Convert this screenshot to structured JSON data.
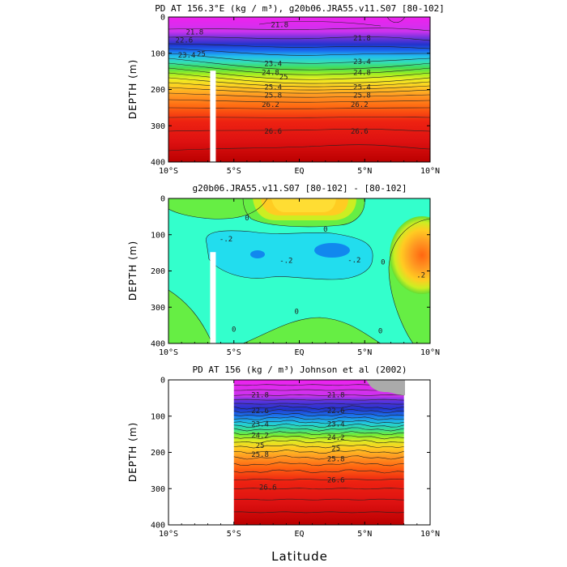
{
  "figure": {
    "xlabel": "Latitude"
  },
  "chart_data": [
    {
      "type": "heatmap",
      "title": "PD AT 156.3°E (kg / m³), g20b06.JRA55.v11.S07 [80-102]",
      "ylabel": "DEPTH (m)",
      "xlim": [
        -10,
        10
      ],
      "ylim": [
        0,
        400
      ],
      "y_inverted": true,
      "x_ticks": [
        "10°S",
        "5°S",
        "EQ",
        "5°N",
        "10°N"
      ],
      "x_tick_values": [
        -10,
        -5,
        0,
        5,
        10
      ],
      "y_ticks": [
        0,
        100,
        200,
        300,
        400
      ],
      "contour_labels": [
        {
          "lat": -8.0,
          "depth": 48,
          "text": "21.8"
        },
        {
          "lat": -1.5,
          "depth": 28,
          "text": "21.8"
        },
        {
          "lat": 4.8,
          "depth": 65,
          "text": "21.8"
        },
        {
          "lat": -8.8,
          "depth": 70,
          "text": "22.6"
        },
        {
          "lat": -8.6,
          "depth": 112,
          "text": "23.4"
        },
        {
          "lat": -7.5,
          "depth": 108,
          "text": "25"
        },
        {
          "lat": -2.0,
          "depth": 135,
          "text": "23.4"
        },
        {
          "lat": -2.2,
          "depth": 160,
          "text": "24.8"
        },
        {
          "lat": -1.2,
          "depth": 172,
          "text": "25"
        },
        {
          "lat": 4.8,
          "depth": 130,
          "text": "23.4"
        },
        {
          "lat": 4.8,
          "depth": 160,
          "text": "24.8"
        },
        {
          "lat": -2.0,
          "depth": 200,
          "text": "25.4"
        },
        {
          "lat": 4.8,
          "depth": 200,
          "text": "25.4"
        },
        {
          "lat": -2.0,
          "depth": 222,
          "text": "25.8"
        },
        {
          "lat": 4.8,
          "depth": 222,
          "text": "25.8"
        },
        {
          "lat": -2.2,
          "depth": 248,
          "text": "26.2"
        },
        {
          "lat": 4.6,
          "depth": 248,
          "text": "26.2"
        },
        {
          "lat": -2.0,
          "depth": 322,
          "text": "26.6"
        },
        {
          "lat": 4.6,
          "depth": 322,
          "text": "26.6"
        }
      ],
      "masked_bar": {
        "lat": -6.6,
        "from_depth": 148,
        "to_depth": 400
      }
    },
    {
      "type": "heatmap",
      "title": "g20b06.JRA55.v11.S07 [80-102] -  [80-102]",
      "ylabel": "DEPTH (m)",
      "xlim": [
        -10,
        10
      ],
      "ylim": [
        0,
        400
      ],
      "y_inverted": true,
      "x_ticks": [
        "10°S",
        "5°S",
        "EQ",
        "5°N",
        "10°N"
      ],
      "x_tick_values": [
        -10,
        -5,
        0,
        5,
        10
      ],
      "y_ticks": [
        0,
        100,
        200,
        300,
        400
      ],
      "contour_labels": [
        {
          "lat": -4.0,
          "depth": 60,
          "text": "0"
        },
        {
          "lat": 2.0,
          "depth": 92,
          "text": "0"
        },
        {
          "lat": -5.6,
          "depth": 118,
          "text": "-.2"
        },
        {
          "lat": -1.0,
          "depth": 178,
          "text": "-.2"
        },
        {
          "lat": 4.2,
          "depth": 176,
          "text": "-.2"
        },
        {
          "lat": -0.2,
          "depth": 318,
          "text": "0"
        },
        {
          "lat": -5.0,
          "depth": 368,
          "text": "0"
        },
        {
          "lat": 6.2,
          "depth": 372,
          "text": "0"
        },
        {
          "lat": 6.4,
          "depth": 182,
          "text": "0"
        },
        {
          "lat": 9.3,
          "depth": 218,
          "text": ".2"
        }
      ],
      "masked_bar": {
        "lat": -6.6,
        "from_depth": 148,
        "to_depth": 400
      }
    },
    {
      "type": "heatmap",
      "title": "PD AT 156 (kg / m³) Johnson et al (2002)",
      "ylabel": "DEPTH (m)",
      "xlim": [
        -10,
        10
      ],
      "ylim": [
        0,
        400
      ],
      "y_inverted": true,
      "data_lat_range": [
        -5,
        8
      ],
      "x_ticks": [
        "10°S",
        "5°S",
        "EQ",
        "5°N",
        "10°N"
      ],
      "x_tick_values": [
        -10,
        -5,
        0,
        5,
        10
      ],
      "y_ticks": [
        0,
        100,
        200,
        300,
        400
      ],
      "contour_labels": [
        {
          "lat": -3.0,
          "depth": 48,
          "text": "21.8"
        },
        {
          "lat": 2.8,
          "depth": 48,
          "text": "21.8"
        },
        {
          "lat": -3.0,
          "depth": 92,
          "text": "22.6"
        },
        {
          "lat": 2.8,
          "depth": 92,
          "text": "22.6"
        },
        {
          "lat": -3.0,
          "depth": 128,
          "text": "23.4"
        },
        {
          "lat": 2.8,
          "depth": 128,
          "text": "23.4"
        },
        {
          "lat": -3.0,
          "depth": 160,
          "text": "24.2"
        },
        {
          "lat": 2.8,
          "depth": 165,
          "text": "24.2"
        },
        {
          "lat": -3.0,
          "depth": 188,
          "text": "25"
        },
        {
          "lat": 2.8,
          "depth": 195,
          "text": "25"
        },
        {
          "lat": -3.0,
          "depth": 212,
          "text": "25.8"
        },
        {
          "lat": 2.8,
          "depth": 225,
          "text": "25.8"
        },
        {
          "lat": -2.4,
          "depth": 303,
          "text": "26.6"
        },
        {
          "lat": 2.8,
          "depth": 283,
          "text": "26.6"
        }
      ]
    }
  ]
}
